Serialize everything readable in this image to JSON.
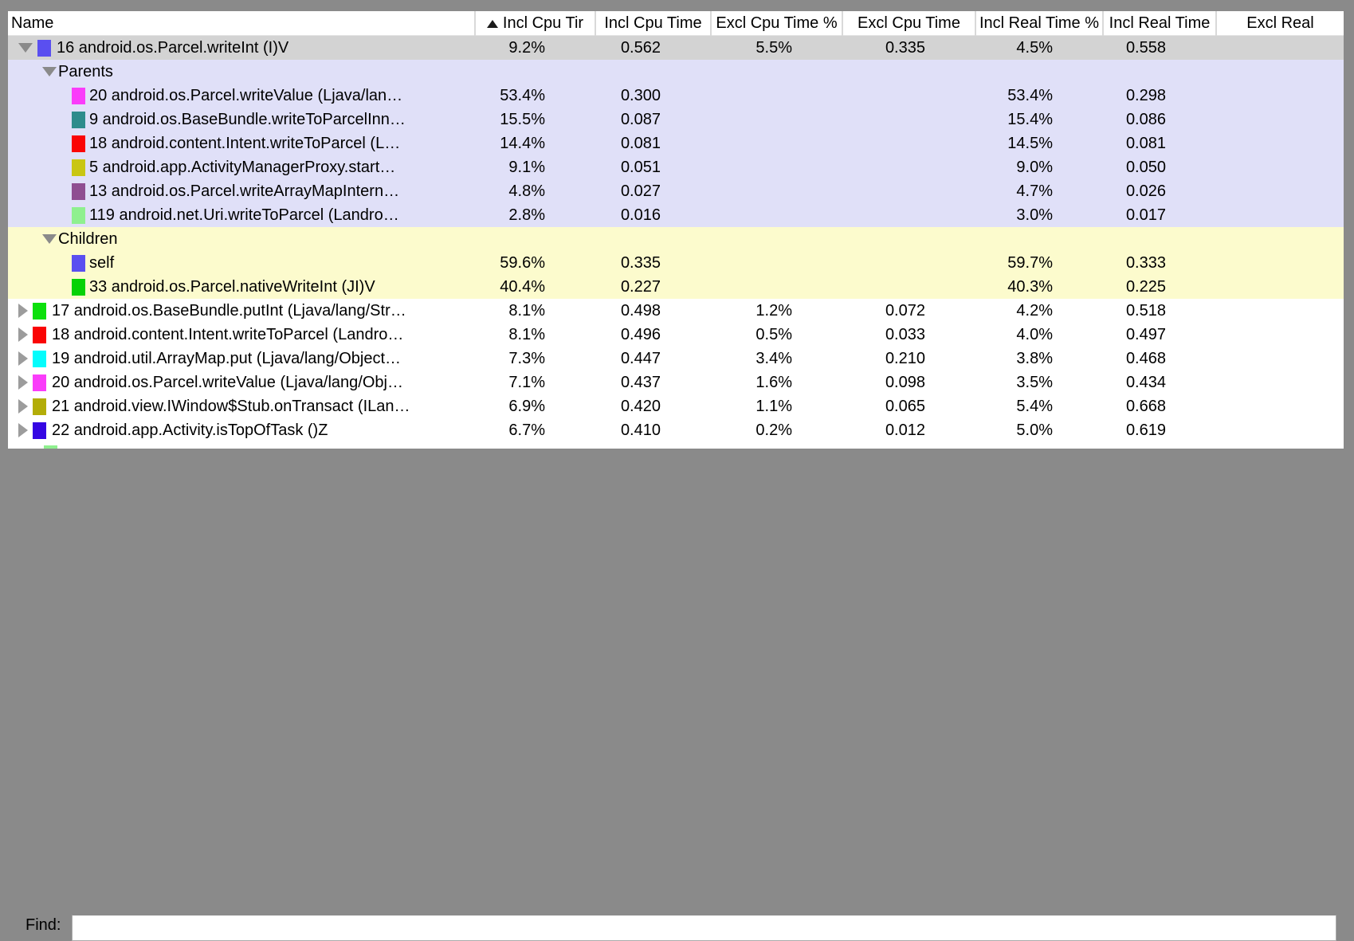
{
  "window": {
    "background": "#8a8a8a"
  },
  "table": {
    "columns": [
      {
        "label": "Name",
        "sorted": false
      },
      {
        "label": "Incl Cpu Tir",
        "sorted": true
      },
      {
        "label": "Incl Cpu Time",
        "sorted": false
      },
      {
        "label": "Excl Cpu Time %",
        "sorted": false
      },
      {
        "label": "Excl Cpu Time",
        "sorted": false
      },
      {
        "label": "Incl Real Time %",
        "sorted": false
      },
      {
        "label": "Incl Real Time",
        "sorted": false
      },
      {
        "label": "Excl Real",
        "sorted": false
      }
    ],
    "colors": {
      "selected_row": "#d3d3d3",
      "parents_section": "#e0e0f8",
      "children_section": "#fcfbcd"
    },
    "rows": [
      {
        "type": "method",
        "expanded": true,
        "selected": true,
        "bg": "selected",
        "chip": "#5a4ff0",
        "name": "16 android.os.Parcel.writeInt (I)V",
        "vals": [
          "9.2%",
          "0.562",
          "5.5%",
          "0.335",
          "4.5%",
          "0.558"
        ]
      },
      {
        "type": "section",
        "bg": "parents",
        "name": "Parents",
        "vals": [
          "",
          "",
          "",
          "",
          "",
          ""
        ]
      },
      {
        "type": "item",
        "bg": "parents",
        "chip": "#fa3cfa",
        "name": "20 android.os.Parcel.writeValue (Ljava/lan…",
        "vals": [
          "53.4%",
          "0.300",
          "",
          "",
          "53.4%",
          "0.298"
        ]
      },
      {
        "type": "item",
        "bg": "parents",
        "chip": "#2e8c8c",
        "name": "9 android.os.BaseBundle.writeToParcelInn…",
        "vals": [
          "15.5%",
          "0.087",
          "",
          "",
          "15.4%",
          "0.086"
        ]
      },
      {
        "type": "item",
        "bg": "parents",
        "chip": "#fa0505",
        "name": "18 android.content.Intent.writeToParcel (L…",
        "vals": [
          "14.4%",
          "0.081",
          "",
          "",
          "14.5%",
          "0.081"
        ]
      },
      {
        "type": "item",
        "bg": "parents",
        "chip": "#c9c613",
        "name": "5 android.app.ActivityManagerProxy.start…",
        "vals": [
          "9.1%",
          "0.051",
          "",
          "",
          "9.0%",
          "0.050"
        ]
      },
      {
        "type": "item",
        "bg": "parents",
        "chip": "#8f4e91",
        "name": "13 android.os.Parcel.writeArrayMapIntern…",
        "vals": [
          "4.8%",
          "0.027",
          "",
          "",
          "4.7%",
          "0.026"
        ]
      },
      {
        "type": "item",
        "bg": "parents",
        "chip": "#8ff08f",
        "name": "119 android.net.Uri.writeToParcel (Landro…",
        "vals": [
          "2.8%",
          "0.016",
          "",
          "",
          "3.0%",
          "0.017"
        ]
      },
      {
        "type": "section",
        "bg": "children",
        "name": "Children",
        "vals": [
          "",
          "",
          "",
          "",
          "",
          ""
        ]
      },
      {
        "type": "item",
        "bg": "children",
        "chip": "#5a4ff0",
        "name": "self",
        "vals": [
          "59.6%",
          "0.335",
          "",
          "",
          "59.7%",
          "0.333"
        ]
      },
      {
        "type": "item",
        "bg": "children",
        "chip": "#06d206",
        "name": "33 android.os.Parcel.nativeWriteInt (JI)V",
        "vals": [
          "40.4%",
          "0.227",
          "",
          "",
          "40.3%",
          "0.225"
        ]
      },
      {
        "type": "method",
        "expanded": false,
        "bg": "plain",
        "chip": "#0ce00c",
        "name": "17 android.os.BaseBundle.putInt (Ljava/lang/Str…",
        "vals": [
          "8.1%",
          "0.498",
          "1.2%",
          "0.072",
          "4.2%",
          "0.518"
        ]
      },
      {
        "type": "method",
        "expanded": false,
        "bg": "plain",
        "chip": "#fa0505",
        "name": "18 android.content.Intent.writeToParcel (Landro…",
        "vals": [
          "8.1%",
          "0.496",
          "0.5%",
          "0.033",
          "4.0%",
          "0.497"
        ]
      },
      {
        "type": "method",
        "expanded": false,
        "bg": "plain",
        "chip": "#04fcfc",
        "name": "19 android.util.ArrayMap.put (Ljava/lang/Object…",
        "vals": [
          "7.3%",
          "0.447",
          "3.4%",
          "0.210",
          "3.8%",
          "0.468"
        ]
      },
      {
        "type": "method",
        "expanded": false,
        "bg": "plain",
        "chip": "#fa3cfa",
        "name": "20 android.os.Parcel.writeValue (Ljava/lang/Obj…",
        "vals": [
          "7.1%",
          "0.437",
          "1.6%",
          "0.098",
          "3.5%",
          "0.434"
        ]
      },
      {
        "type": "method",
        "expanded": false,
        "bg": "plain",
        "chip": "#b3ad08",
        "name": "21 android.view.IWindow$Stub.onTransact (ILan…",
        "vals": [
          "6.9%",
          "0.420",
          "1.1%",
          "0.065",
          "5.4%",
          "0.668"
        ]
      },
      {
        "type": "method",
        "expanded": false,
        "bg": "plain",
        "chip": "#3506e3",
        "name": "22 android.app.Activity.isTopOfTask ()Z",
        "vals": [
          "6.7%",
          "0.410",
          "0.2%",
          "0.012",
          "5.0%",
          "0.619"
        ]
      }
    ],
    "partial_row": {
      "chip": "#8ff08f"
    }
  },
  "find": {
    "label": "Find:",
    "value": ""
  }
}
